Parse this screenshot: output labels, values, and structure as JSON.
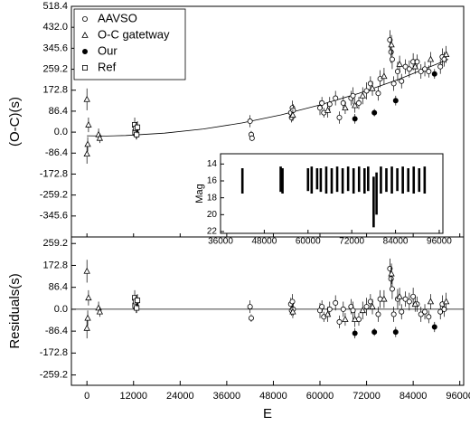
{
  "chart_data": [
    {
      "panel": "top",
      "type": "scatter",
      "ylabel": "(O-C)(s)",
      "xlim": [
        -4000,
        97000
      ],
      "ylim": [
        -432.0,
        518.4
      ],
      "yticks": [
        "518.4",
        "432.0",
        "345.6",
        "259.2",
        "172.8",
        "86.4",
        "0.0",
        "-86.4",
        "-172.8",
        "-259.2",
        "-345.6"
      ],
      "legend": {
        "placement": "top-left",
        "entries": [
          "AAVSO",
          "O-C gatetway",
          "Our",
          "Ref"
        ]
      },
      "fit": {
        "type": "quadratic",
        "x": [
          0,
          5000,
          10000,
          20000,
          30000,
          40000,
          50000,
          60000,
          70000,
          80000,
          90000,
          93000
        ],
        "y": [
          -15,
          -16,
          -14,
          -4,
          13,
          38,
          71,
          112,
          160,
          216,
          280,
          300
        ]
      },
      "series": [
        {
          "name": "AAVSO",
          "marker": "circle-open",
          "points": [
            [
              42000,
              45,
              25
            ],
            [
              42300,
              -10,
              15
            ],
            [
              42500,
              -25,
              12
            ],
            [
              52500,
              80,
              25
            ],
            [
              52700,
              60,
              20
            ],
            [
              52900,
              100,
              30
            ],
            [
              53100,
              90,
              25
            ],
            [
              60000,
              100,
              30
            ],
            [
              60500,
              120,
              25
            ],
            [
              61000,
              80,
              20
            ],
            [
              62500,
              115,
              30
            ],
            [
              64000,
              140,
              30
            ],
            [
              65000,
              60,
              25
            ],
            [
              66000,
              120,
              30
            ],
            [
              68000,
              140,
              30
            ],
            [
              68500,
              150,
              35
            ],
            [
              70000,
              120,
              25
            ],
            [
              72000,
              170,
              35
            ],
            [
              73000,
              200,
              30
            ],
            [
              75000,
              160,
              30
            ],
            [
              75500,
              220,
              35
            ],
            [
              78000,
              380,
              40
            ],
            [
              78300,
              330,
              45
            ],
            [
              78600,
              300,
              40
            ],
            [
              79000,
              200,
              30
            ],
            [
              80000,
              250,
              40
            ],
            [
              81000,
              210,
              30
            ],
            [
              82000,
              270,
              30
            ],
            [
              83000,
              260,
              35
            ],
            [
              84000,
              290,
              35
            ],
            [
              85000,
              290,
              30
            ],
            [
              86000,
              250,
              30
            ],
            [
              87000,
              260,
              30
            ],
            [
              88000,
              250,
              25
            ],
            [
              91000,
              270,
              30
            ],
            [
              91500,
              310,
              35
            ],
            [
              92000,
              300,
              30
            ]
          ]
        },
        {
          "name": "O-C gatetway",
          "marker": "triangle-open",
          "points": [
            [
              0,
              135,
              45
            ],
            [
              0,
              -90,
              40
            ],
            [
              200,
              -50,
              30
            ],
            [
              400,
              30,
              30
            ],
            [
              3000,
              -10,
              25
            ],
            [
              3300,
              -25,
              20
            ],
            [
              12500,
              10,
              30
            ],
            [
              12700,
              -5,
              25
            ],
            [
              53000,
              70,
              25
            ],
            [
              62000,
              90,
              30
            ],
            [
              66500,
              100,
              25
            ],
            [
              69000,
              110,
              30
            ],
            [
              71000,
              150,
              35
            ],
            [
              73500,
              180,
              30
            ],
            [
              76500,
              230,
              35
            ],
            [
              78400,
              360,
              40
            ],
            [
              80500,
              280,
              35
            ],
            [
              84500,
              270,
              30
            ],
            [
              88500,
              300,
              30
            ],
            [
              92500,
              320,
              35
            ]
          ]
        },
        {
          "name": "Our",
          "marker": "circle-filled",
          "points": [
            [
              69000,
              55,
              20
            ],
            [
              74000,
              80,
              15
            ],
            [
              79500,
              130,
              20
            ],
            [
              89500,
              240,
              20
            ]
          ]
        },
        {
          "name": "Ref",
          "marker": "square-open",
          "points": [
            [
              12300,
              30,
              30
            ],
            [
              12400,
              0,
              20
            ],
            [
              12600,
              15,
              25
            ],
            [
              12800,
              -10,
              20
            ],
            [
              13000,
              20,
              25
            ]
          ]
        }
      ]
    },
    {
      "panel": "inset",
      "type": "scatter",
      "ylabel": "Mag",
      "xlim": [
        36000,
        97000
      ],
      "ylim": [
        22,
        13
      ],
      "xticks": [
        "36000",
        "48000",
        "60000",
        "72000",
        "84000",
        "96000"
      ],
      "yticks": [
        "14",
        "16",
        "18",
        "20",
        "22"
      ],
      "segments": [
        [
          42000,
          14.5,
          17.5
        ],
        [
          52500,
          14.3,
          17.3
        ],
        [
          53000,
          14.5,
          17.5
        ],
        [
          60000,
          14.5,
          17.2
        ],
        [
          61000,
          14.3,
          17.5
        ],
        [
          62500,
          14.5,
          17.0
        ],
        [
          63500,
          14.5,
          17.3
        ],
        [
          65000,
          14.3,
          17.5
        ],
        [
          66500,
          14.5,
          17.5
        ],
        [
          68000,
          14.3,
          17.3
        ],
        [
          69500,
          14.5,
          17.5
        ],
        [
          71000,
          14.3,
          17.2
        ],
        [
          72500,
          14.5,
          17.5
        ],
        [
          74000,
          14.3,
          17.3
        ],
        [
          75500,
          14.5,
          17.5
        ],
        [
          76500,
          14.3,
          17.2
        ],
        [
          78000,
          15.5,
          21.5
        ],
        [
          78800,
          15.0,
          20.0
        ],
        [
          80000,
          14.3,
          17.5
        ],
        [
          81500,
          14.5,
          17.3
        ],
        [
          83000,
          14.3,
          17.5
        ],
        [
          84500,
          14.5,
          17.2
        ],
        [
          86000,
          14.3,
          17.5
        ],
        [
          87500,
          14.5,
          17.3
        ],
        [
          89000,
          14.3,
          17.5
        ],
        [
          90500,
          14.5,
          17.3
        ],
        [
          92000,
          14.3,
          17.5
        ]
      ]
    },
    {
      "panel": "bottom",
      "type": "scatter",
      "ylabel": "Residuals(s)",
      "xlabel": "E",
      "xlim": [
        -4000,
        97000
      ],
      "ylim": [
        -300,
        285
      ],
      "xticks": [
        "0",
        "12000",
        "24000",
        "36000",
        "48000",
        "60000",
        "72000",
        "84000",
        "96000"
      ],
      "yticks": [
        "259.2",
        "172.8",
        "86.4",
        "0.0",
        "-86.4",
        "-172.8",
        "-259.2"
      ],
      "series": [
        {
          "name": "AAVSO",
          "marker": "circle-open",
          "points": [
            [
              42000,
              10,
              25
            ],
            [
              42300,
              -35,
              15
            ],
            [
              52500,
              20,
              25
            ],
            [
              52700,
              -5,
              20
            ],
            [
              52900,
              30,
              30
            ],
            [
              53100,
              0,
              25
            ],
            [
              60000,
              -5,
              30
            ],
            [
              60500,
              10,
              25
            ],
            [
              61000,
              -30,
              20
            ],
            [
              62500,
              0,
              30
            ],
            [
              64000,
              25,
              30
            ],
            [
              65000,
              -50,
              25
            ],
            [
              66000,
              0,
              30
            ],
            [
              68000,
              10,
              30
            ],
            [
              68500,
              -5,
              35
            ],
            [
              70000,
              -40,
              25
            ],
            [
              72000,
              10,
              35
            ],
            [
              73000,
              30,
              30
            ],
            [
              75000,
              -20,
              30
            ],
            [
              75500,
              40,
              35
            ],
            [
              78000,
              160,
              40
            ],
            [
              78300,
              120,
              45
            ],
            [
              78600,
              80,
              40
            ],
            [
              79000,
              -20,
              30
            ],
            [
              80000,
              40,
              40
            ],
            [
              81000,
              -10,
              30
            ],
            [
              82000,
              40,
              30
            ],
            [
              83000,
              30,
              35
            ],
            [
              84000,
              50,
              35
            ],
            [
              85000,
              20,
              30
            ],
            [
              86000,
              -20,
              30
            ],
            [
              87000,
              -10,
              30
            ],
            [
              88000,
              -30,
              25
            ],
            [
              91000,
              -10,
              30
            ],
            [
              91500,
              20,
              35
            ],
            [
              92000,
              0,
              30
            ]
          ]
        },
        {
          "name": "O-C gatetway",
          "marker": "triangle-open",
          "points": [
            [
              0,
              150,
              45
            ],
            [
              0,
              -75,
              40
            ],
            [
              200,
              -35,
              30
            ],
            [
              400,
              45,
              30
            ],
            [
              3000,
              5,
              25
            ],
            [
              3300,
              -10,
              20
            ],
            [
              12500,
              25,
              30
            ],
            [
              12700,
              10,
              25
            ],
            [
              53000,
              -10,
              25
            ],
            [
              62000,
              -20,
              30
            ],
            [
              66500,
              -40,
              25
            ],
            [
              69000,
              -40,
              30
            ],
            [
              71000,
              -5,
              35
            ],
            [
              73500,
              10,
              30
            ],
            [
              76500,
              40,
              35
            ],
            [
              78400,
              140,
              40
            ],
            [
              80500,
              50,
              35
            ],
            [
              84500,
              20,
              30
            ],
            [
              88500,
              30,
              30
            ],
            [
              92500,
              30,
              35
            ]
          ]
        },
        {
          "name": "Our",
          "marker": "circle-filled",
          "points": [
            [
              69000,
              -95,
              20
            ],
            [
              74000,
              -90,
              15
            ],
            [
              79500,
              -90,
              20
            ],
            [
              89500,
              -70,
              20
            ]
          ]
        },
        {
          "name": "Ref",
          "marker": "square-open",
          "points": [
            [
              12300,
              45,
              30
            ],
            [
              12400,
              15,
              20
            ],
            [
              12600,
              30,
              25
            ],
            [
              12800,
              5,
              20
            ],
            [
              13000,
              35,
              25
            ]
          ]
        }
      ]
    }
  ]
}
